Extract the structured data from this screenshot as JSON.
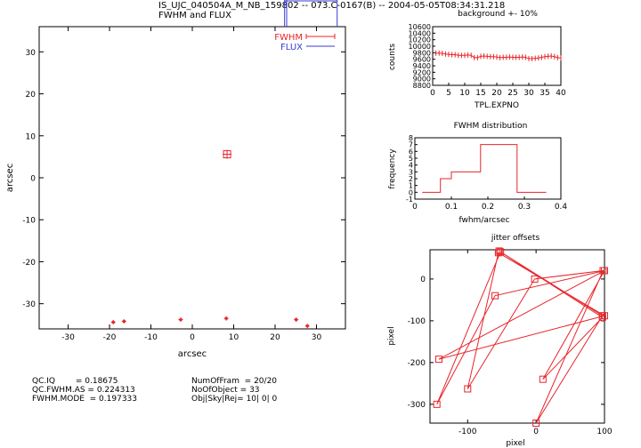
{
  "header": {
    "line1": "IS_UJC_040504A_M_NB_159802 -- 073.C-0167(B)  --  2004-05-05T08:34:31.218",
    "line2": "FWHM and FLUX"
  },
  "colors": {
    "red": "#e8252b",
    "blue": "#3b3bd6"
  },
  "chart_data": [
    {
      "id": "main",
      "type": "scatter",
      "xlabel": "arcsec",
      "ylabel": "arcsec",
      "xlim": [
        -37,
        37
      ],
      "ylim": [
        -36,
        36
      ],
      "xticks": [
        -30,
        -20,
        -10,
        0,
        10,
        20,
        30
      ],
      "yticks": [
        -30,
        -20,
        -10,
        0,
        10,
        20,
        30
      ],
      "legend": [
        {
          "name": "FWHM",
          "color": "#e8252b"
        },
        {
          "name": "FLUX",
          "color": "#3b3bd6"
        }
      ],
      "flux_lines_x": [
        22.3,
        22.8,
        35.0
      ],
      "points": [
        {
          "x": 8.4,
          "y": 5.6,
          "big": true
        },
        {
          "x": 8.2,
          "y": -33.5
        },
        {
          "x": 25.1,
          "y": -33.8
        },
        {
          "x": -2.8,
          "y": -33.8
        },
        {
          "x": -16.5,
          "y": -34.2
        },
        {
          "x": -19.1,
          "y": -34.4
        },
        {
          "x": 27.8,
          "y": -35.3
        }
      ]
    },
    {
      "id": "background",
      "type": "line",
      "title": "background +- 10%",
      "xlabel": "TPL.EXPNO",
      "ylabel": "counts",
      "xlim": [
        0,
        40
      ],
      "ylim": [
        8800,
        10600
      ],
      "xticks": [
        0,
        5,
        10,
        15,
        20,
        25,
        30,
        35,
        40
      ],
      "yticks": [
        8800,
        9000,
        9200,
        9400,
        9600,
        9800,
        10000,
        10200,
        10400,
        10600
      ],
      "x": [
        1,
        2,
        3,
        4,
        5,
        6,
        7,
        8,
        9,
        10,
        11,
        12,
        13,
        14,
        15,
        16,
        17,
        18,
        19,
        20,
        21,
        22,
        23,
        24,
        25,
        26,
        27,
        28,
        29,
        30,
        31,
        32,
        33,
        34,
        35,
        36,
        37,
        38,
        39,
        40
      ],
      "y": [
        9790,
        9790,
        9780,
        9760,
        9750,
        9740,
        9740,
        9720,
        9720,
        9720,
        9730,
        9720,
        9650,
        9650,
        9690,
        9700,
        9690,
        9680,
        9680,
        9670,
        9650,
        9660,
        9660,
        9670,
        9660,
        9660,
        9660,
        9670,
        9660,
        9620,
        9620,
        9630,
        9640,
        9660,
        9680,
        9690,
        9700,
        9680,
        9650,
        9640
      ]
    },
    {
      "id": "fwhm_hist",
      "type": "bar",
      "title": "FWHM distribution",
      "xlabel": "fwhm/arcsec",
      "ylabel": "frequency",
      "xlim": [
        0,
        0.4
      ],
      "ylim": [
        -1,
        8
      ],
      "xticks": [
        0,
        0.1,
        0.2,
        0.3,
        0.4
      ],
      "yticks": [
        -1,
        0,
        1,
        2,
        3,
        4,
        5,
        6,
        7,
        8
      ],
      "steps": [
        [
          0.02,
          0.07,
          0
        ],
        [
          0.07,
          0.1,
          2
        ],
        [
          0.1,
          0.18,
          3
        ],
        [
          0.18,
          0.28,
          7
        ],
        [
          0.28,
          0.36,
          0
        ]
      ]
    },
    {
      "id": "jitter",
      "type": "scatter",
      "title": "jitter offsets",
      "xlabel": "pixel",
      "ylabel": "pixel",
      "xlim": [
        -155,
        100
      ],
      "ylim": [
        -345,
        70
      ],
      "xticks": [
        -100,
        0,
        100
      ],
      "yticks": [
        -300,
        -200,
        -100,
        0
      ],
      "path": [
        [
          -54,
          67
        ],
        [
          97,
          -92
        ],
        [
          10,
          -240
        ],
        [
          100,
          20
        ],
        [
          -60,
          -40
        ],
        [
          -145,
          -300
        ],
        [
          -52,
          65
        ],
        [
          97,
          -88
        ],
        [
          0,
          -345
        ],
        [
          98,
          20
        ],
        [
          -2,
          0
        ],
        [
          -100,
          -263
        ],
        [
          -55,
          63
        ],
        [
          100,
          -88
        ],
        [
          -142,
          -192
        ],
        [
          100,
          20
        ]
      ]
    }
  ],
  "qc": {
    "iq": "QC.IQ        = 0.18675",
    "fwhm_as": "QC.FWHM.AS = 0.224313",
    "fwhm_mode": "FWHM.MODE  = 0.197333",
    "numofram": "NumOfFram  = 20/20",
    "noobject": "NoOfObject = 33",
    "objskyrej": "Obj|Sky|Rej= 10| 0| 0"
  }
}
